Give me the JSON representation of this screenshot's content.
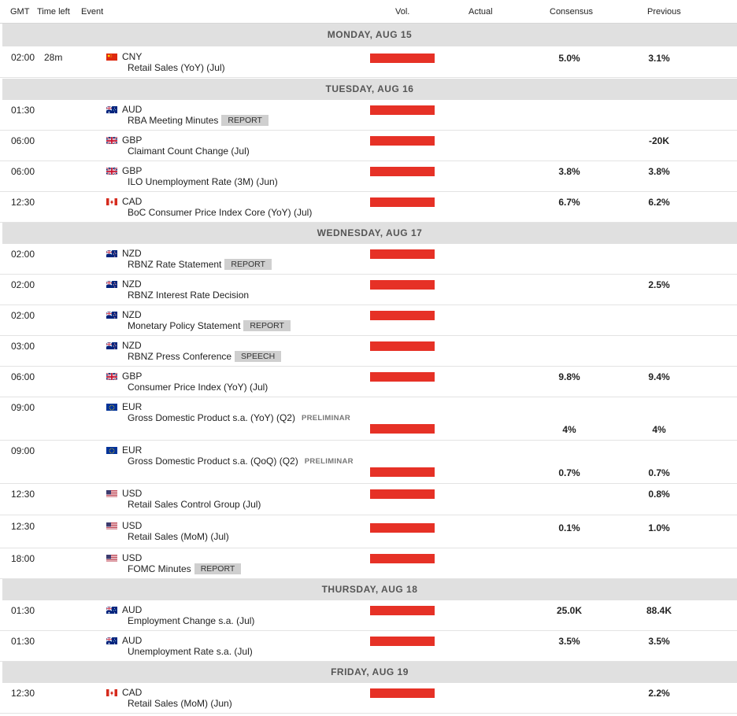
{
  "header": {
    "gmt": "GMT",
    "time_left": "Time left",
    "event": "Event",
    "vol": "Vol.",
    "actual": "Actual",
    "consensus": "Consensus",
    "previous": "Previous"
  },
  "colors": {
    "volatility_high": "#e63126",
    "day_header_bg": "#e0e0e0",
    "badge_bg": "#cfcfcf"
  },
  "days": [
    {
      "label": "MONDAY, AUG 15",
      "events": [
        {
          "time": "02:00",
          "time_left": "28m",
          "flag": "cn-flag-icon",
          "currency": "CNY",
          "name": "Retail Sales (YoY) (Jul)",
          "tag": "",
          "prelim": "",
          "actual": "",
          "consensus": "5.0%",
          "previous": "3.1%"
        }
      ]
    },
    {
      "label": "TUESDAY, AUG 16",
      "events": [
        {
          "time": "01:30",
          "time_left": "",
          "flag": "au-flag-icon",
          "currency": "AUD",
          "name": "RBA Meeting Minutes",
          "tag": "REPORT",
          "prelim": "",
          "actual": "",
          "consensus": "",
          "previous": ""
        },
        {
          "time": "06:00",
          "time_left": "",
          "flag": "gb-flag-icon",
          "currency": "GBP",
          "name": "Claimant Count Change (Jul)",
          "tag": "",
          "prelim": "",
          "actual": "",
          "consensus": "",
          "previous": "-20K"
        },
        {
          "time": "06:00",
          "time_left": "",
          "flag": "gb-flag-icon",
          "currency": "GBP",
          "name": "ILO Unemployment Rate (3M) (Jun)",
          "tag": "",
          "prelim": "",
          "actual": "",
          "consensus": "3.8%",
          "previous": "3.8%"
        },
        {
          "time": "12:30",
          "time_left": "",
          "flag": "ca-flag-icon",
          "currency": "CAD",
          "name": "BoC Consumer Price Index Core (YoY) (Jul)",
          "tag": "",
          "prelim": "",
          "actual": "",
          "consensus": "6.7%",
          "previous": "6.2%"
        }
      ]
    },
    {
      "label": "WEDNESDAY, AUG 17",
      "events": [
        {
          "time": "02:00",
          "time_left": "",
          "flag": "nz-flag-icon",
          "currency": "NZD",
          "name": "RBNZ Rate Statement",
          "tag": "REPORT",
          "prelim": "",
          "actual": "",
          "consensus": "",
          "previous": ""
        },
        {
          "time": "02:00",
          "time_left": "",
          "flag": "nz-flag-icon",
          "currency": "NZD",
          "name": "RBNZ Interest Rate Decision",
          "tag": "",
          "prelim": "",
          "actual": "",
          "consensus": "",
          "previous": "2.5%"
        },
        {
          "time": "02:00",
          "time_left": "",
          "flag": "nz-flag-icon",
          "currency": "NZD",
          "name": "Monetary Policy Statement",
          "tag": "REPORT",
          "prelim": "",
          "actual": "",
          "consensus": "",
          "previous": ""
        },
        {
          "time": "03:00",
          "time_left": "",
          "flag": "nz-flag-icon",
          "currency": "NZD",
          "name": "RBNZ Press Conference",
          "tag": "SPEECH",
          "prelim": "",
          "actual": "",
          "consensus": "",
          "previous": ""
        },
        {
          "time": "06:00",
          "time_left": "",
          "flag": "gb-flag-icon",
          "currency": "GBP",
          "name": "Consumer Price Index (YoY) (Jul)",
          "tag": "",
          "prelim": "",
          "actual": "",
          "consensus": "9.8%",
          "previous": "9.4%"
        },
        {
          "time": "09:00",
          "time_left": "",
          "flag": "eu-flag-icon",
          "currency": "EUR",
          "name": "Gross Domestic Product s.a. (YoY) (Q2)",
          "tag": "",
          "prelim": "PRELIMINAR",
          "actual": "",
          "consensus": "4%",
          "previous": "4%"
        },
        {
          "time": "09:00",
          "time_left": "",
          "flag": "eu-flag-icon",
          "currency": "EUR",
          "name": "Gross Domestic Product s.a. (QoQ) (Q2)",
          "tag": "",
          "prelim": "PRELIMINAR",
          "actual": "",
          "consensus": "0.7%",
          "previous": "0.7%"
        },
        {
          "time": "12:30",
          "time_left": "",
          "flag": "us-flag-icon",
          "currency": "USD",
          "name": "Retail Sales Control Group (Jul)",
          "tag": "",
          "prelim": "",
          "actual": "",
          "consensus": "",
          "previous": "0.8%"
        },
        {
          "time": "12:30",
          "time_left": "",
          "flag": "us-flag-icon",
          "currency": "USD",
          "name": "Retail Sales (MoM) (Jul)",
          "tag": "",
          "prelim": "",
          "actual": "",
          "consensus": "0.1%",
          "previous": "1.0%"
        },
        {
          "time": "18:00",
          "time_left": "",
          "flag": "us-flag-icon",
          "currency": "USD",
          "name": "FOMC Minutes",
          "tag": "REPORT",
          "prelim": "",
          "actual": "",
          "consensus": "",
          "previous": ""
        }
      ]
    },
    {
      "label": "THURSDAY, AUG 18",
      "events": [
        {
          "time": "01:30",
          "time_left": "",
          "flag": "au-flag-icon",
          "currency": "AUD",
          "name": "Employment Change s.a. (Jul)",
          "tag": "",
          "prelim": "",
          "actual": "",
          "consensus": "25.0K",
          "previous": "88.4K"
        },
        {
          "time": "01:30",
          "time_left": "",
          "flag": "au-flag-icon",
          "currency": "AUD",
          "name": "Unemployment Rate s.a. (Jul)",
          "tag": "",
          "prelim": "",
          "actual": "",
          "consensus": "3.5%",
          "previous": "3.5%"
        }
      ]
    },
    {
      "label": "FRIDAY, AUG 19",
      "events": [
        {
          "time": "12:30",
          "time_left": "",
          "flag": "ca-flag-icon",
          "currency": "CAD",
          "name": "Retail Sales (MoM) (Jun)",
          "tag": "",
          "prelim": "",
          "actual": "",
          "consensus": "",
          "previous": "2.2%"
        }
      ]
    }
  ]
}
